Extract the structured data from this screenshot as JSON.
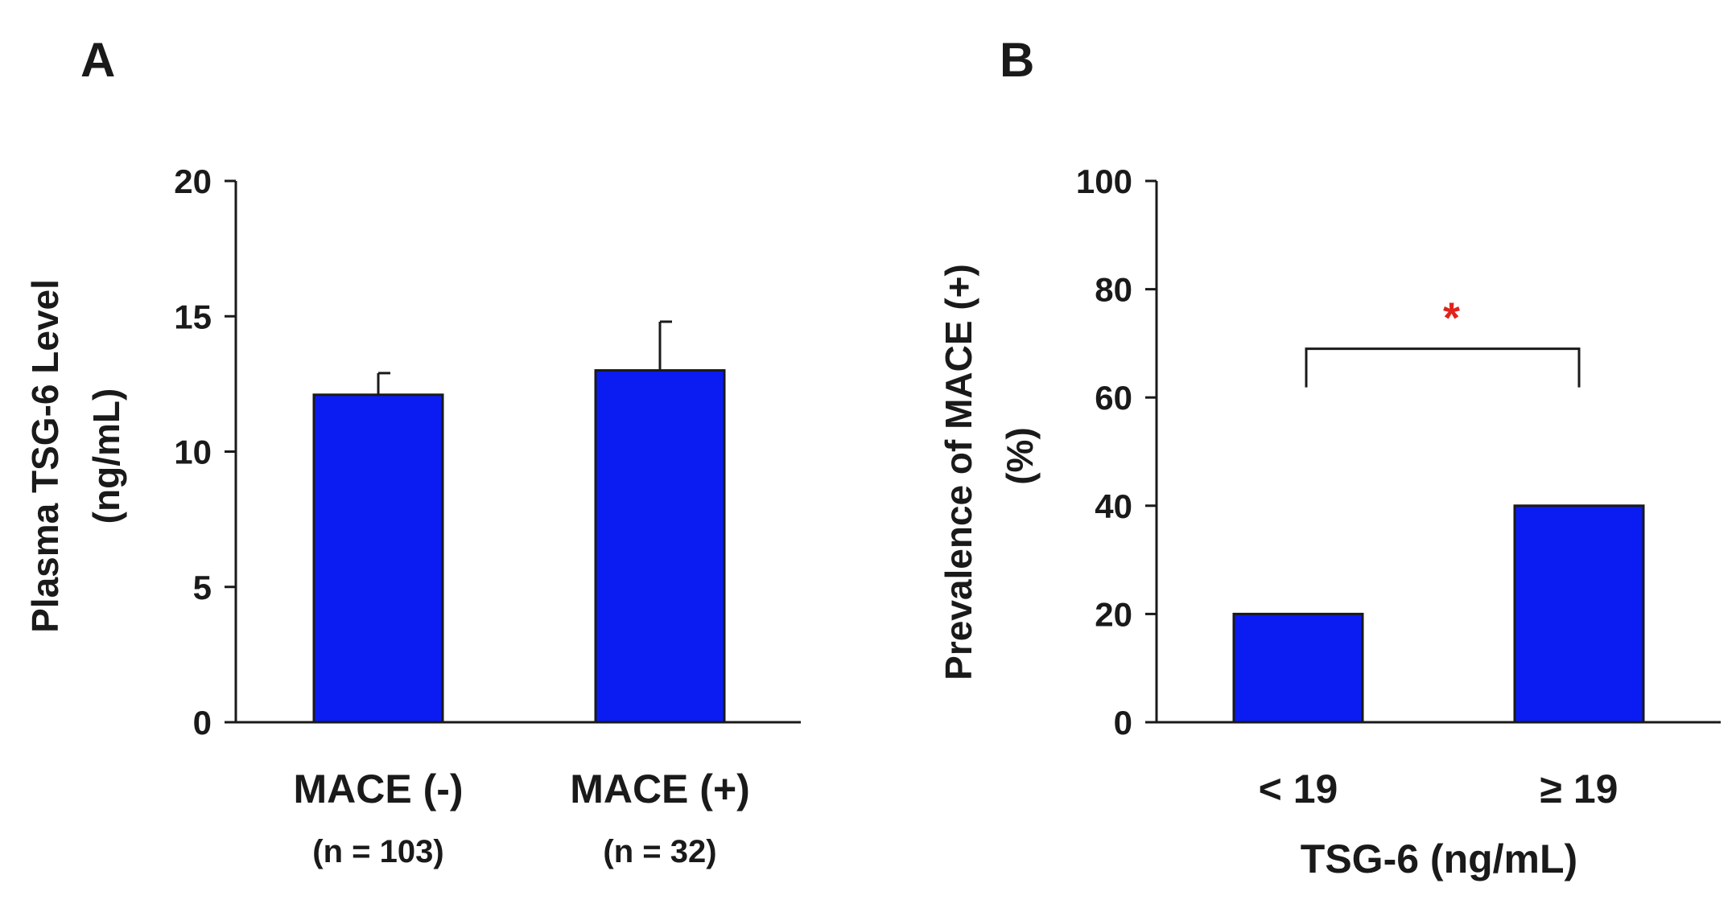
{
  "bar_color": "#0b1cf2",
  "sig_color": "#e0231b",
  "chart_data": [
    {
      "panel": "A",
      "type": "bar",
      "categories": [
        "MACE (-)",
        "MACE (+)"
      ],
      "subcategories": [
        "(n = 103)",
        "(n = 32)"
      ],
      "values": [
        12.1,
        13.0
      ],
      "errors": [
        0.8,
        1.8
      ],
      "title": "",
      "xlabel": "",
      "ylabel": [
        "Plasma TSG-6 Level",
        "(ng/mL)"
      ],
      "ylim": [
        0,
        20
      ],
      "yticks": [
        "0",
        "5",
        "10",
        "15",
        "20"
      ],
      "grid": false
    },
    {
      "panel": "B",
      "type": "bar",
      "categories": [
        "< 19",
        "≥ 19"
      ],
      "values": [
        20,
        40
      ],
      "title": "",
      "xlabel": "TSG-6 (ng/mL)",
      "ylabel": [
        "Prevalence of MACE (+)",
        "(%)"
      ],
      "ylim": [
        0,
        100
      ],
      "yticks": [
        "0",
        "20",
        "40",
        "60",
        "80",
        "100"
      ],
      "grid": false,
      "annotation": {
        "text": "*",
        "between": [
          0,
          1
        ],
        "bracket_at": 69
      }
    }
  ]
}
